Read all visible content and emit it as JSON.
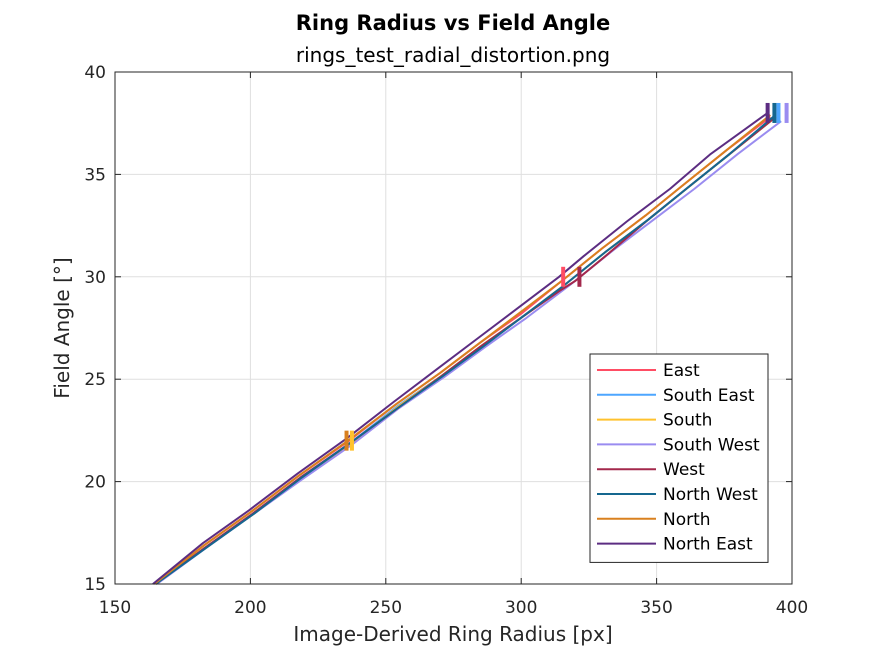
{
  "chart_data": {
    "type": "line",
    "title": "Ring Radius vs Field Angle",
    "subtitle": "rings_test_radial_distortion.png",
    "xlabel": "Image-Derived Ring Radius [px]",
    "ylabel": "Field Angle [°]",
    "xlim": [
      150,
      400
    ],
    "ylim": [
      15,
      40
    ],
    "xticks": [
      150,
      200,
      250,
      300,
      350,
      400
    ],
    "yticks": [
      15,
      20,
      25,
      30,
      35,
      40
    ],
    "grid": true,
    "legend_position": "bottom-right",
    "series": [
      {
        "name": "East",
        "color": "#ff4d64",
        "points": [
          [
            164.5,
            15
          ],
          [
            183,
            16.9
          ],
          [
            200,
            18.5
          ],
          [
            218,
            20.3
          ],
          [
            236.5,
            22
          ],
          [
            254,
            23.8
          ],
          [
            270,
            25.3
          ],
          [
            285,
            26.8
          ],
          [
            300,
            28.2
          ],
          [
            315,
            29.8
          ],
          [
            330,
            31.4
          ],
          [
            346,
            33
          ],
          [
            360,
            34.5
          ],
          [
            376,
            36.2
          ],
          [
            392,
            37.8
          ]
        ],
        "marker": {
          "x": 315.5,
          "y": 30
        }
      },
      {
        "name": "South East",
        "color": "#4da6ff",
        "points": [
          [
            165,
            15
          ],
          [
            183.5,
            16.8
          ],
          [
            200.5,
            18.4
          ],
          [
            218.5,
            20.2
          ],
          [
            237,
            21.9
          ],
          [
            254.5,
            23.7
          ],
          [
            271,
            25.2
          ],
          [
            286,
            26.7
          ],
          [
            301,
            28.1
          ],
          [
            316,
            29.6
          ],
          [
            331,
            31.2
          ],
          [
            347,
            32.8
          ],
          [
            361,
            34.3
          ],
          [
            377,
            36
          ],
          [
            394,
            37.8
          ]
        ],
        "marker": {
          "x": 395,
          "y": 38
        }
      },
      {
        "name": "South",
        "color": "#ffc22e",
        "points": [
          [
            165,
            15
          ],
          [
            183.5,
            16.8
          ],
          [
            201,
            18.4
          ],
          [
            219,
            20.2
          ],
          [
            237.5,
            21.9
          ],
          [
            255,
            23.7
          ],
          [
            271,
            25.2
          ],
          [
            286,
            26.7
          ],
          [
            301,
            28.1
          ],
          [
            316,
            29.6
          ],
          [
            331,
            31.2
          ],
          [
            347,
            32.8
          ],
          [
            361,
            34.3
          ],
          [
            377,
            36
          ],
          [
            394,
            37.8
          ]
        ],
        "marker": {
          "x": 237.5,
          "y": 22
        }
      },
      {
        "name": "South West",
        "color": "#9a8cf0",
        "points": [
          [
            165.5,
            15
          ],
          [
            184,
            16.8
          ],
          [
            201,
            18.4
          ],
          [
            219,
            20.1
          ],
          [
            237.5,
            21.8
          ],
          [
            255,
            23.6
          ],
          [
            271.5,
            25.1
          ],
          [
            287,
            26.6
          ],
          [
            302,
            28
          ],
          [
            318,
            29.6
          ],
          [
            334,
            31.3
          ],
          [
            350,
            32.9
          ],
          [
            364,
            34.3
          ],
          [
            380,
            36
          ],
          [
            396,
            37.6
          ]
        ],
        "marker": {
          "x": 398,
          "y": 38
        }
      },
      {
        "name": "West",
        "color": "#a3284c",
        "points": [
          [
            165,
            15
          ],
          [
            183.5,
            16.8
          ],
          [
            200.5,
            18.4
          ],
          [
            218.5,
            20.2
          ],
          [
            236,
            21.8
          ],
          [
            253.5,
            23.5
          ],
          [
            270,
            25.1
          ],
          [
            285,
            26.6
          ],
          [
            300,
            28
          ],
          [
            314,
            29.3
          ],
          [
            320,
            29.8
          ],
          [
            331,
            31
          ],
          [
            347,
            32.8
          ],
          [
            361,
            34.3
          ],
          [
            377,
            36
          ],
          [
            393,
            37.7
          ]
        ],
        "marker": {
          "x": 321.5,
          "y": 30
        }
      },
      {
        "name": "North West",
        "color": "#15678f",
        "points": [
          [
            165,
            15
          ],
          [
            184,
            16.8
          ],
          [
            201,
            18.4
          ],
          [
            219,
            20.2
          ],
          [
            237,
            21.9
          ],
          [
            254.5,
            23.6
          ],
          [
            270.5,
            25.1
          ],
          [
            286,
            26.6
          ],
          [
            301,
            28.1
          ],
          [
            316,
            29.6
          ],
          [
            331,
            31.2
          ],
          [
            347,
            32.8
          ],
          [
            361,
            34.3
          ],
          [
            377,
            36
          ],
          [
            393,
            37.8
          ]
        ],
        "marker": {
          "x": 393.5,
          "y": 38
        }
      },
      {
        "name": "North",
        "color": "#d9801f",
        "points": [
          [
            164.5,
            15
          ],
          [
            183,
            16.9
          ],
          [
            200,
            18.5
          ],
          [
            218,
            20.3
          ],
          [
            236,
            22
          ],
          [
            254,
            23.8
          ],
          [
            270,
            25.3
          ],
          [
            285,
            26.8
          ],
          [
            300,
            28.3
          ],
          [
            315,
            29.8
          ],
          [
            330,
            31.4
          ],
          [
            346,
            33
          ],
          [
            360,
            34.5
          ],
          [
            376,
            36.2
          ],
          [
            392,
            37.9
          ]
        ],
        "marker": {
          "x": 235.5,
          "y": 22
        }
      },
      {
        "name": "North East",
        "color": "#5c2d82",
        "points": [
          [
            164,
            15
          ],
          [
            182.5,
            17
          ],
          [
            199.5,
            18.6
          ],
          [
            217.5,
            20.4
          ],
          [
            235.5,
            22.1
          ],
          [
            253,
            23.9
          ],
          [
            269,
            25.5
          ],
          [
            284,
            27
          ],
          [
            299,
            28.5
          ],
          [
            314,
            30
          ],
          [
            323,
            31
          ],
          [
            339,
            32.7
          ],
          [
            355,
            34.3
          ],
          [
            370,
            36
          ],
          [
            391,
            38
          ]
        ],
        "marker": {
          "x": 391,
          "y": 38
        }
      }
    ]
  }
}
